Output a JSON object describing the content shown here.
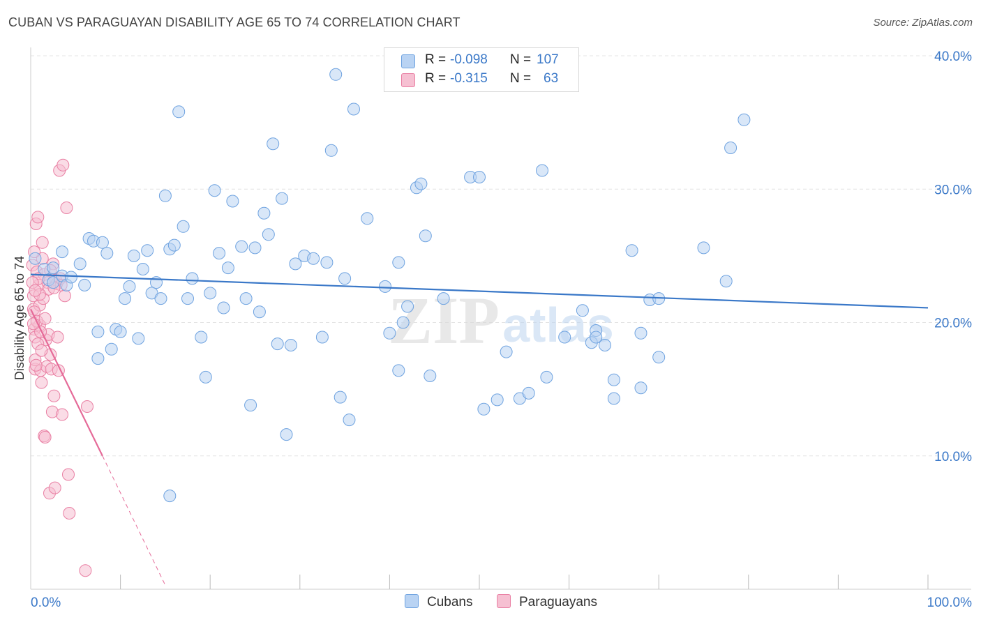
{
  "title": "CUBAN VS PARAGUAYAN DISABILITY AGE 65 TO 74 CORRELATION CHART",
  "source": "Source: ZipAtlas.com",
  "watermark": {
    "zip": "ZIP",
    "atlas": "atlas"
  },
  "legend": {
    "series": [
      {
        "name": "Cubans",
        "r_label": "R =",
        "r_value": "-0.098",
        "n_label": "N =",
        "n_value": "107",
        "color": "#6fa3e0",
        "fill": "#b9d3f3"
      },
      {
        "name": "Paraguayans",
        "r_label": "R =",
        "r_value": "-0.315",
        "n_label": "N =",
        "n_value": "63",
        "color": "#e97fa3",
        "fill": "#f6c0d2"
      }
    ]
  },
  "colors": {
    "blue_line": "#3a78c8",
    "pink_line": "#e56a98",
    "tick_label": "#3a78c8",
    "grid": "#e4e4e4"
  },
  "chart_data": {
    "type": "scatter",
    "title": "CUBAN VS PARAGUAYAN DISABILITY AGE 65 TO 74 CORRELATION CHART",
    "xlabel": "",
    "ylabel": "Disability Age 65 to 74",
    "xlim": [
      0,
      100
    ],
    "ylim": [
      0,
      40
    ],
    "x_tick_labels": [
      "0.0%",
      "100.0%"
    ],
    "y_ticks": [
      10,
      20,
      30,
      40
    ],
    "y_tick_labels": [
      "10.0%",
      "20.0%",
      "30.0%",
      "40.0%"
    ],
    "grid": true,
    "series": [
      {
        "name": "Cubans",
        "trend": {
          "x": [
            0,
            100
          ],
          "y": [
            23.6,
            21.1
          ]
        },
        "points": [
          [
            0.5,
            24.8
          ],
          [
            1.5,
            24.0
          ],
          [
            2.0,
            23.2
          ],
          [
            2.5,
            23.0
          ],
          [
            3.5,
            23.5
          ],
          [
            3.5,
            25.3
          ],
          [
            4.0,
            22.8
          ],
          [
            5.5,
            24.4
          ],
          [
            6.0,
            22.8
          ],
          [
            6.5,
            26.3
          ],
          [
            7.0,
            26.1
          ],
          [
            7.5,
            17.3
          ],
          [
            7.5,
            19.3
          ],
          [
            8.0,
            26.0
          ],
          [
            8.5,
            25.2
          ],
          [
            9.0,
            18.0
          ],
          [
            9.5,
            19.5
          ],
          [
            10.0,
            19.3
          ],
          [
            10.5,
            21.8
          ],
          [
            11.0,
            22.7
          ],
          [
            11.5,
            25.0
          ],
          [
            12.0,
            18.8
          ],
          [
            12.5,
            24.0
          ],
          [
            13.0,
            25.4
          ],
          [
            13.5,
            22.2
          ],
          [
            14.0,
            23.0
          ],
          [
            14.5,
            21.8
          ],
          [
            15.0,
            29.5
          ],
          [
            15.5,
            25.5
          ],
          [
            16.0,
            25.8
          ],
          [
            16.5,
            35.8
          ],
          [
            17.0,
            27.2
          ],
          [
            17.5,
            21.8
          ],
          [
            18.0,
            23.3
          ],
          [
            19.0,
            18.9
          ],
          [
            19.5,
            15.9
          ],
          [
            20.0,
            22.2
          ],
          [
            20.5,
            29.9
          ],
          [
            21.0,
            25.2
          ],
          [
            21.5,
            21.1
          ],
          [
            22.0,
            24.1
          ],
          [
            22.5,
            29.1
          ],
          [
            23.5,
            25.7
          ],
          [
            24.0,
            21.8
          ],
          [
            24.5,
            13.8
          ],
          [
            25.0,
            25.6
          ],
          [
            25.5,
            20.8
          ],
          [
            26.0,
            28.2
          ],
          [
            26.5,
            26.6
          ],
          [
            27.0,
            33.4
          ],
          [
            27.5,
            18.4
          ],
          [
            28.0,
            29.3
          ],
          [
            28.5,
            11.6
          ],
          [
            29.0,
            18.3
          ],
          [
            29.5,
            24.4
          ],
          [
            30.5,
            25.0
          ],
          [
            31.5,
            24.8
          ],
          [
            32.5,
            18.9
          ],
          [
            33.0,
            24.5
          ],
          [
            33.5,
            32.9
          ],
          [
            34.0,
            38.6
          ],
          [
            34.5,
            14.4
          ],
          [
            35.0,
            23.3
          ],
          [
            35.5,
            12.7
          ],
          [
            36.0,
            36.0
          ],
          [
            37.5,
            27.8
          ],
          [
            39.5,
            22.7
          ],
          [
            40.0,
            19.2
          ],
          [
            41.0,
            24.5
          ],
          [
            41.0,
            16.4
          ],
          [
            41.5,
            20.0
          ],
          [
            42.0,
            21.2
          ],
          [
            43.0,
            30.1
          ],
          [
            43.5,
            30.4
          ],
          [
            44.0,
            26.5
          ],
          [
            44.5,
            16.0
          ],
          [
            46.0,
            21.8
          ],
          [
            49.0,
            30.9
          ],
          [
            50.0,
            30.9
          ],
          [
            50.5,
            13.5
          ],
          [
            52.0,
            14.2
          ],
          [
            53.0,
            17.8
          ],
          [
            54.5,
            14.3
          ],
          [
            55.5,
            14.7
          ],
          [
            57.0,
            31.4
          ],
          [
            57.5,
            15.9
          ],
          [
            59.5,
            18.9
          ],
          [
            61.5,
            20.9
          ],
          [
            62.5,
            18.5
          ],
          [
            63.0,
            19.4
          ],
          [
            63.0,
            18.9
          ],
          [
            64.0,
            18.3
          ],
          [
            65.0,
            14.3
          ],
          [
            65.0,
            15.7
          ],
          [
            67.0,
            25.4
          ],
          [
            68.0,
            15.1
          ],
          [
            68.0,
            19.2
          ],
          [
            69.0,
            21.7
          ],
          [
            70.0,
            17.4
          ],
          [
            70.0,
            21.8
          ],
          [
            75.0,
            25.6
          ],
          [
            77.5,
            23.1
          ],
          [
            78.0,
            33.1
          ],
          [
            79.5,
            35.2
          ],
          [
            15.5,
            7.0
          ],
          [
            2.5,
            24.1
          ],
          [
            4.5,
            23.4
          ]
        ]
      },
      {
        "name": "Paraguayans",
        "trend": {
          "x": [
            0,
            8
          ],
          "y": [
            21.0,
            10.0
          ]
        },
        "trend_dashed": {
          "x": [
            8,
            15
          ],
          "y": [
            10.0,
            0.3
          ]
        },
        "points": [
          [
            0.2,
            24.3
          ],
          [
            0.3,
            21.0
          ],
          [
            0.4,
            19.5
          ],
          [
            0.5,
            18.9
          ],
          [
            0.5,
            16.5
          ],
          [
            0.6,
            27.4
          ],
          [
            0.7,
            23.8
          ],
          [
            0.8,
            27.9
          ],
          [
            0.9,
            22.8
          ],
          [
            1.0,
            21.3
          ],
          [
            1.0,
            19.8
          ],
          [
            1.1,
            16.4
          ],
          [
            1.2,
            15.5
          ],
          [
            1.3,
            26.0
          ],
          [
            1.4,
            21.8
          ],
          [
            1.5,
            23.6
          ],
          [
            1.5,
            11.5
          ],
          [
            1.6,
            11.4
          ],
          [
            1.7,
            18.7
          ],
          [
            1.8,
            16.7
          ],
          [
            1.9,
            23.0
          ],
          [
            2.0,
            22.5
          ],
          [
            2.0,
            19.1
          ],
          [
            2.1,
            7.2
          ],
          [
            2.2,
            17.6
          ],
          [
            2.3,
            16.5
          ],
          [
            2.4,
            13.3
          ],
          [
            2.5,
            24.4
          ],
          [
            2.6,
            14.5
          ],
          [
            2.7,
            7.6
          ],
          [
            2.8,
            23.2
          ],
          [
            2.9,
            22.9
          ],
          [
            3.0,
            18.9
          ],
          [
            3.1,
            16.4
          ],
          [
            3.2,
            31.4
          ],
          [
            3.3,
            23.3
          ],
          [
            3.4,
            22.8
          ],
          [
            3.5,
            13.1
          ],
          [
            3.6,
            31.8
          ],
          [
            3.8,
            22.0
          ],
          [
            4.0,
            28.6
          ],
          [
            4.2,
            8.6
          ],
          [
            4.3,
            5.7
          ],
          [
            6.3,
            13.7
          ],
          [
            6.1,
            1.4
          ],
          [
            0.3,
            22.0
          ],
          [
            0.4,
            20.8
          ],
          [
            0.5,
            17.2
          ],
          [
            0.6,
            16.8
          ],
          [
            0.7,
            20.1
          ],
          [
            0.8,
            18.4
          ],
          [
            0.9,
            23.3
          ],
          [
            1.0,
            22.1
          ],
          [
            1.1,
            19.3
          ],
          [
            1.2,
            17.9
          ],
          [
            1.3,
            24.8
          ],
          [
            0.2,
            23.0
          ],
          [
            0.3,
            19.9
          ],
          [
            0.5,
            22.4
          ],
          [
            1.6,
            20.3
          ],
          [
            2.2,
            23.9
          ],
          [
            2.6,
            22.6
          ],
          [
            0.4,
            25.3
          ]
        ]
      }
    ]
  }
}
